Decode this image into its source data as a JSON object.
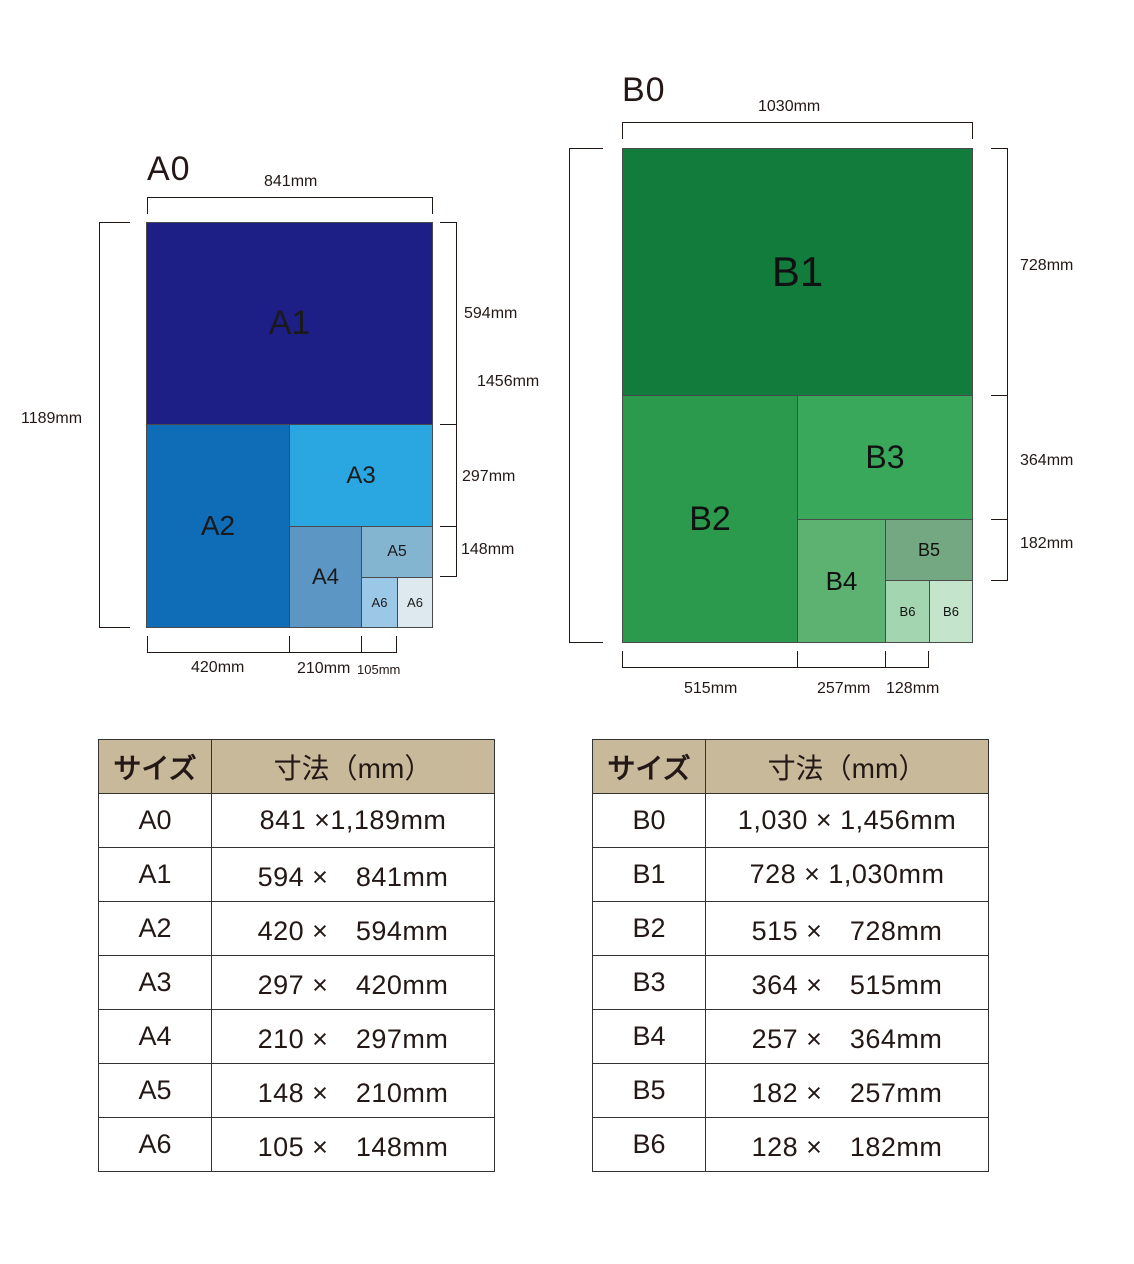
{
  "a_diagram": {
    "title": "A0",
    "width_label": "841mm",
    "height_label": "1189mm",
    "a1_height_label": "594mm",
    "a3_height_label": "297mm",
    "a5_height_label": "148mm",
    "a2_width_label": "420mm",
    "a4_width_label": "210mm",
    "a6_width_label": "105mm",
    "parts": {
      "a1": "A1",
      "a2": "A2",
      "a3": "A3",
      "a4": "A4",
      "a5": "A5",
      "a6_left": "A6",
      "a6_right": "A6"
    },
    "colors": {
      "a1": "#1e1e87",
      "a2": "#0f6cb7",
      "a3": "#2aa6e0",
      "a4": "#5b96c4",
      "a5": "#84b5d0",
      "a6_left": "#9cc8e8",
      "a6_right": "#dde9ee"
    }
  },
  "b_diagram": {
    "title": "B0",
    "width_label": "1030mm",
    "height_label": "1456mm",
    "b1_height_label": "728mm",
    "b3_height_label": "364mm",
    "b5_height_label": "182mm",
    "b2_width_label": "515mm",
    "b4_width_label": "257mm",
    "b6_width_label": "128mm",
    "parts": {
      "b1": "B1",
      "b2": "B2",
      "b3": "B3",
      "b4": "B4",
      "b5": "B5",
      "b6_left": "B6",
      "b6_right": "B6"
    },
    "colors": {
      "b1": "#117c3c",
      "b2": "#2c9a4c",
      "b3": "#39a85a",
      "b4": "#5db272",
      "b5": "#74a882",
      "b6_left": "#a3d6b0",
      "b6_right": "#c4e4cc"
    }
  },
  "a_table": {
    "header_size": "サイズ",
    "header_dim": "寸法（mm）",
    "rows": [
      {
        "size": "A0",
        "dim": "841 ×1,189mm"
      },
      {
        "size": "A1",
        "dim": "594 ×　841mm"
      },
      {
        "size": "A2",
        "dim": "420 ×　594mm"
      },
      {
        "size": "A3",
        "dim": "297 ×　420mm"
      },
      {
        "size": "A4",
        "dim": "210 ×　297mm"
      },
      {
        "size": "A5",
        "dim": "148 ×　210mm"
      },
      {
        "size": "A6",
        "dim": "105 ×　148mm"
      }
    ]
  },
  "b_table": {
    "header_size": "サイズ",
    "header_dim": "寸法（mm）",
    "rows": [
      {
        "size": "B0",
        "dim": "1,030 × 1,456mm"
      },
      {
        "size": "B1",
        "dim": "728 × 1,030mm"
      },
      {
        "size": "B2",
        "dim": "515 ×　728mm"
      },
      {
        "size": "B3",
        "dim": "364 ×　515mm"
      },
      {
        "size": "B4",
        "dim": "257 ×　364mm"
      },
      {
        "size": "B5",
        "dim": "182 ×　257mm"
      },
      {
        "size": "B6",
        "dim": "128 ×　182mm"
      }
    ]
  },
  "header_color": "#c8b99a"
}
